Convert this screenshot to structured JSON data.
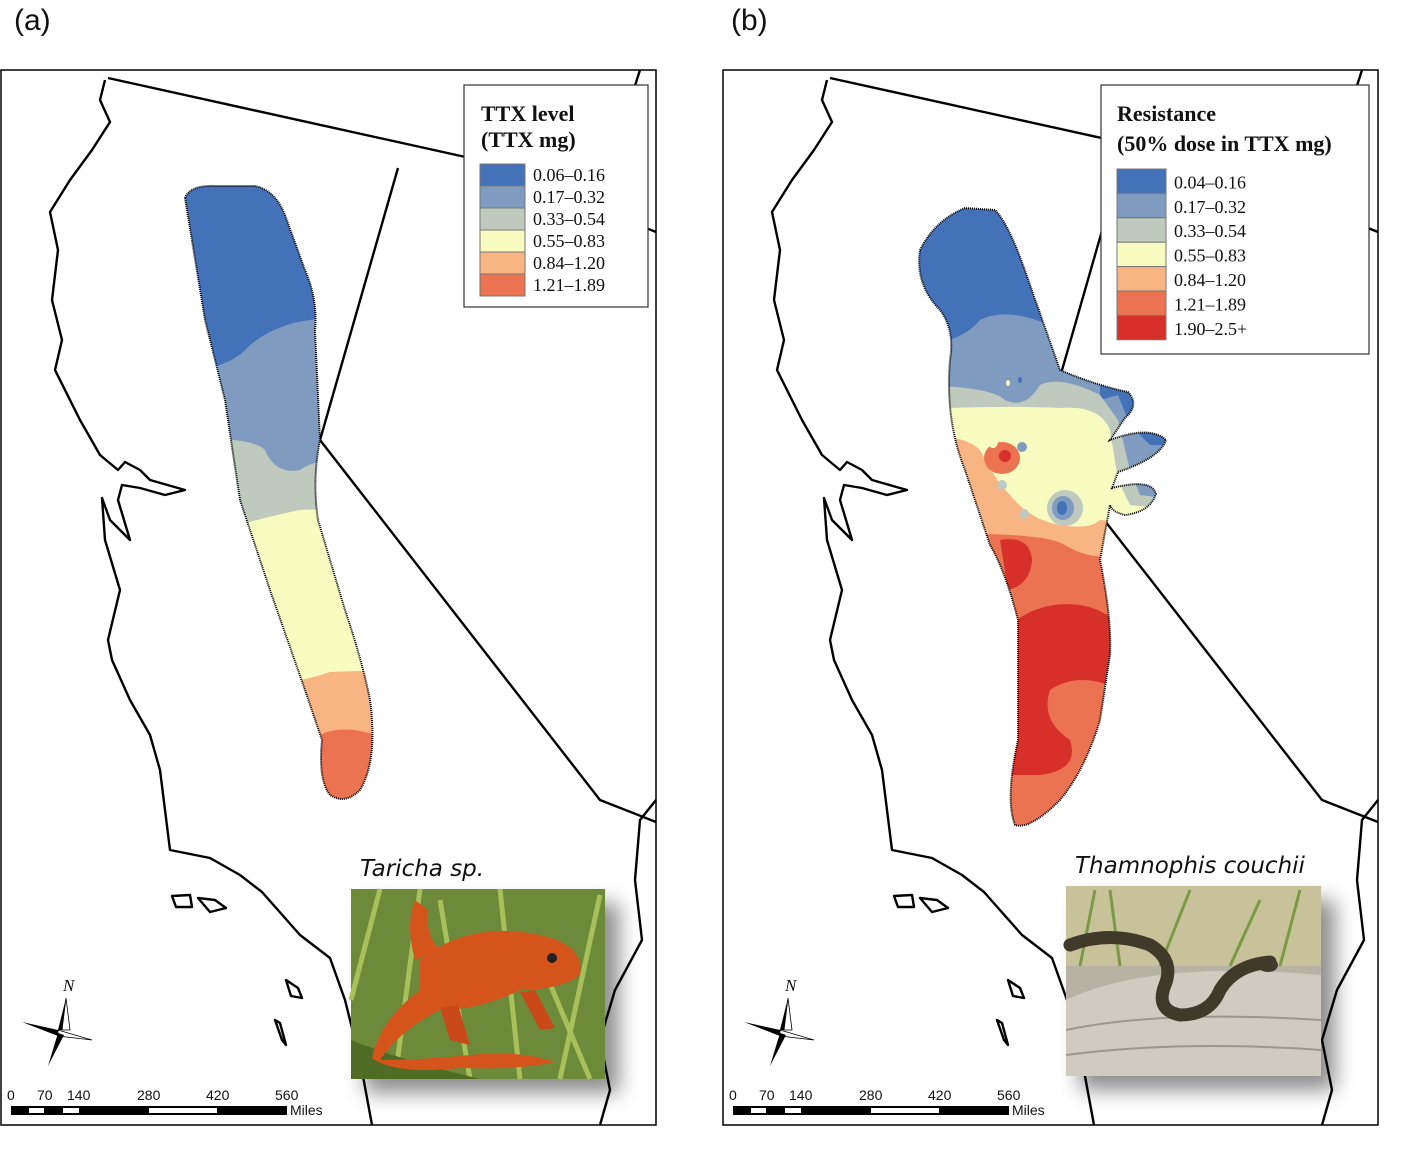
{
  "panels": [
    {
      "label": "(a)",
      "legend": {
        "title_line1": "TTX level",
        "title_line2": "(TTX mg)",
        "items": [
          {
            "label": "0.06–0.16",
            "color": "#4472b8"
          },
          {
            "label": "0.17–0.32",
            "color": "#7f9cc0"
          },
          {
            "label": "0.33–0.54",
            "color": "#bfc9bd"
          },
          {
            "label": "0.55–0.83",
            "color": "#f8fcc0"
          },
          {
            "label": "0.84–1.20",
            "color": "#f8b482"
          },
          {
            "label": "1.21–1.89",
            "color": "#ec7352"
          }
        ]
      },
      "photo_caption": "Taricha sp.",
      "photo_subject": "orange newt on grass"
    },
    {
      "label": "(b)",
      "legend": {
        "title_line1": "Resistance",
        "title_line2": "(50% dose in TTX mg)",
        "items": [
          {
            "label": "0.04–0.16",
            "color": "#4472b8"
          },
          {
            "label": "0.17–0.32",
            "color": "#7f9cc0"
          },
          {
            "label": "0.33–0.54",
            "color": "#bfc9bd"
          },
          {
            "label": "0.55–0.83",
            "color": "#f8fcc0"
          },
          {
            "label": "0.84–1.20",
            "color": "#f8b482"
          },
          {
            "label": "1.21–1.89",
            "color": "#ec7352"
          },
          {
            "label": "1.90–2.5+",
            "color": "#d7302a"
          }
        ]
      },
      "photo_caption": "Thamnophis couchii",
      "photo_subject": "garter snake on log"
    }
  ],
  "compass": {
    "north_label": "N"
  },
  "scale_bar": {
    "ticks": [
      "0",
      "70",
      "140",
      "280",
      "420",
      "560"
    ],
    "unit": "Miles"
  }
}
